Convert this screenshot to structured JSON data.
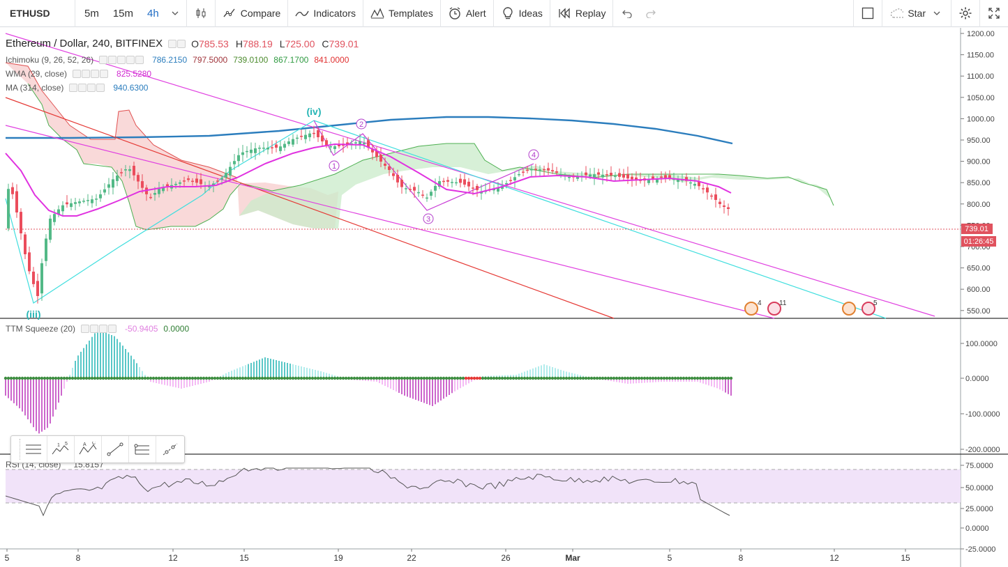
{
  "toolbar": {
    "symbol": "ETHUSD",
    "intervals": [
      "5m",
      "15m",
      "4h"
    ],
    "active_interval": "4h",
    "compare_label": "Compare",
    "indicators_label": "Indicators",
    "templates_label": "Templates",
    "alert_label": "Alert",
    "ideas_label": "Ideas",
    "replay_label": "Replay",
    "star_label": "Star"
  },
  "main_legend": {
    "title": "Ethereum / Dollar, 240, BITFINEX",
    "o_label": "O",
    "o": "785.53",
    "h_label": "H",
    "h": "788.19",
    "l_label": "L",
    "l": "725.00",
    "c_label": "C",
    "c": "739.01"
  },
  "studies": {
    "ichimoku": {
      "name": "Ichimoku (9, 26, 52, 26)",
      "v1": "786.2150",
      "v2": "797.5000",
      "v3": "739.0100",
      "v4": "867.1700",
      "v5": "841.0000"
    },
    "wma": {
      "name": "WMA (29, close)",
      "v": "825.5280"
    },
    "ma": {
      "name": "MA (314, close)",
      "v": "940.6300"
    },
    "ttm": {
      "name": "TTM Squeeze (20)",
      "v1": "-50.9405",
      "v2": "0.0000"
    },
    "rsi": {
      "name": "RSI (14, close)",
      "v": "15.8157"
    }
  },
  "price_axis": {
    "ticks": [
      "1200.00",
      "1150.00",
      "1100.00",
      "1050.00",
      "1000.00",
      "950.00",
      "900.00",
      "850.00",
      "800.00",
      "750.00",
      "700.00",
      "650.00",
      "600.00",
      "550.00"
    ],
    "last_price": "739.01",
    "countdown": "01:26:45"
  },
  "ttm_axis": {
    "ticks": [
      "100.0000",
      "0.0000",
      "-100.0000",
      "-200.0000"
    ]
  },
  "rsi_axis": {
    "ticks": [
      "75.0000",
      "50.0000",
      "25.0000",
      "0.0000",
      "-25.0000"
    ]
  },
  "time_axis": {
    "ticks": [
      "5",
      "8",
      "12",
      "15",
      "19",
      "22",
      "26",
      "Mar",
      "5",
      "8",
      "12",
      "15"
    ]
  },
  "wave_labels": {
    "iii": "(iii)",
    "iv": "(iv)",
    "n1": "1",
    "n2": "2",
    "n3": "3",
    "n4": "4"
  },
  "events": {
    "e1": "4",
    "e2": "11",
    "e3": "5"
  },
  "chart_data": {
    "type": "candlestick",
    "title": "Ethereum / Dollar, 240, BITFINEX",
    "last": {
      "open": 785.53,
      "high": 788.19,
      "low": 725.0,
      "close": 739.01
    },
    "y_range": [
      530,
      1210
    ],
    "colors": {
      "up": "#53b987",
      "down": "#eb4d5c",
      "wma": "#e032e0",
      "ma": "#2b7dbd",
      "channel": "#e040e0",
      "fib": "#3fdede",
      "red_line": "#e53935"
    }
  },
  "colors": {
    "accent": "#1e6bc4",
    "price_tag": "#e0525e"
  }
}
